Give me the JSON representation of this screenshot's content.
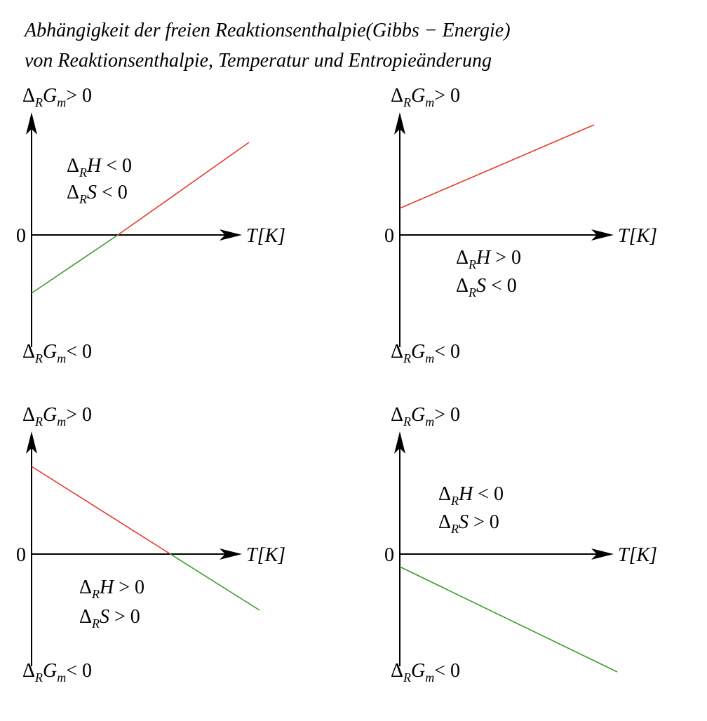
{
  "title": {
    "line1": "Abhängigkeit der freien Reaktionsenthalpie(Gibbs − Energie)",
    "line2": "von Reaktionsenthalpie, Temperatur und Entropieänderung"
  },
  "panels": [
    {
      "y_top": [
        "Δ",
        "R",
        "G",
        "m",
        "> 0"
      ],
      "y_bottom": [
        "Δ",
        "R",
        "G",
        "m",
        "< 0"
      ],
      "zero": "0",
      "x_label": "T[K]",
      "conditions": [
        [
          "Δ",
          "R",
          "H",
          " < 0"
        ],
        [
          "Δ",
          "R",
          "S",
          " < 0"
        ]
      ]
    },
    {
      "y_top": [
        "Δ",
        "R",
        "G",
        "m",
        "> 0"
      ],
      "y_bottom": [
        "Δ",
        "R",
        "G",
        "m",
        "< 0"
      ],
      "zero": "0",
      "x_label": "T[K]",
      "conditions": [
        [
          "Δ",
          "R",
          "H",
          " > 0"
        ],
        [
          "Δ",
          "R",
          "S",
          " < 0"
        ]
      ]
    },
    {
      "y_top": [
        "Δ",
        "R",
        "G",
        "m",
        "> 0"
      ],
      "y_bottom": [
        "Δ",
        "R",
        "G",
        "m",
        "< 0"
      ],
      "zero": "0",
      "x_label": "T[K]",
      "conditions": [
        [
          "Δ",
          "R",
          "H",
          " > 0"
        ],
        [
          "Δ",
          "R",
          "S",
          " > 0"
        ]
      ]
    },
    {
      "y_top": [
        "Δ",
        "R",
        "G",
        "m",
        "> 0"
      ],
      "y_bottom": [
        "Δ",
        "R",
        "G",
        "m",
        "< 0"
      ],
      "zero": "0",
      "x_label": "T[K]",
      "conditions": [
        [
          "Δ",
          "R",
          "H",
          " < 0"
        ],
        [
          "Δ",
          "R",
          "S",
          " > 0"
        ]
      ]
    }
  ]
}
